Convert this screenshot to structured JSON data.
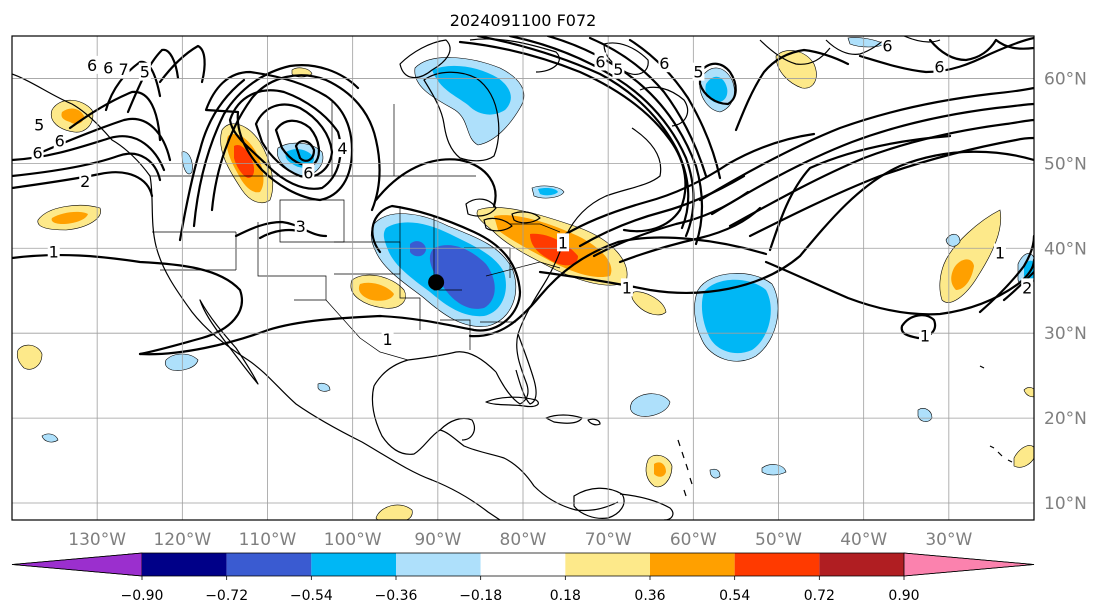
{
  "title": "2024091100 F072",
  "map": {
    "lon_range": [
      -140,
      -20
    ],
    "lat_range": [
      8,
      65
    ],
    "lon_ticks": [
      {
        "lon": -130,
        "label": "130°W"
      },
      {
        "lon": -120,
        "label": "120°W"
      },
      {
        "lon": -110,
        "label": "110°W"
      },
      {
        "lon": -100,
        "label": "100°W"
      },
      {
        "lon": -90,
        "label": "90°W"
      },
      {
        "lon": -80,
        "label": "80°W"
      },
      {
        "lon": -70,
        "label": "70°W"
      },
      {
        "lon": -60,
        "label": "60°W"
      },
      {
        "lon": -50,
        "label": "50°W"
      },
      {
        "lon": -40,
        "label": "40°W"
      },
      {
        "lon": -30,
        "label": "30°W"
      }
    ],
    "lat_ticks": [
      {
        "lat": 10,
        "label": "10°N"
      },
      {
        "lat": 20,
        "label": "20°N"
      },
      {
        "lat": 30,
        "label": "30°N"
      },
      {
        "lat": 40,
        "label": "40°N"
      },
      {
        "lat": 50,
        "label": "50°N"
      },
      {
        "lat": 60,
        "label": "60°N"
      }
    ],
    "grid": true,
    "marker": {
      "lon": -90.2,
      "lat": 36.0
    }
  },
  "colorbar": {
    "colors": [
      "#9b2fce",
      "#000088",
      "#3a5bd1",
      "#00b7f5",
      "#aee0fb",
      "#ffffff",
      "#fde98a",
      "#ffa000",
      "#ff3a00",
      "#b01e22",
      "#fb82ae"
    ],
    "labels": [
      "−0.90",
      "−0.72",
      "−0.54",
      "−0.36",
      "−0.18",
      "0.18",
      "0.36",
      "0.54",
      "0.72",
      "0.90"
    ],
    "extend": "both"
  },
  "contour_labels": [
    {
      "text": "6",
      "lon": -130.6,
      "lat": 61.6
    },
    {
      "text": "6",
      "lon": -128.7,
      "lat": 61.3
    },
    {
      "text": "7",
      "lon": -126.9,
      "lat": 61.1
    },
    {
      "text": "5",
      "lon": -124.4,
      "lat": 60.8
    },
    {
      "text": "5",
      "lon": -136.8,
      "lat": 54.6
    },
    {
      "text": "6",
      "lon": -134.4,
      "lat": 52.7
    },
    {
      "text": "6",
      "lon": -137.0,
      "lat": 51.3
    },
    {
      "text": "2",
      "lon": -131.4,
      "lat": 47.9
    },
    {
      "text": "1",
      "lon": -135.1,
      "lat": 39.6
    },
    {
      "text": "4",
      "lon": -101.2,
      "lat": 51.8
    },
    {
      "text": "6",
      "lon": -105.2,
      "lat": 48.9
    },
    {
      "text": "3",
      "lon": -106.1,
      "lat": 42.6
    },
    {
      "text": "1",
      "lon": -95.9,
      "lat": 29.3
    },
    {
      "text": "1",
      "lon": -75.3,
      "lat": 40.7
    },
    {
      "text": "1",
      "lon": -67.8,
      "lat": 35.4
    },
    {
      "text": "6",
      "lon": -70.9,
      "lat": 62.0
    },
    {
      "text": "5",
      "lon": -68.8,
      "lat": 61.1
    },
    {
      "text": "6",
      "lon": -63.4,
      "lat": 61.8
    },
    {
      "text": "5",
      "lon": -59.4,
      "lat": 60.8
    },
    {
      "text": "6",
      "lon": -37.2,
      "lat": 63.9
    },
    {
      "text": "6",
      "lon": -31.1,
      "lat": 61.4
    },
    {
      "text": "1",
      "lon": -24.0,
      "lat": 39.5
    },
    {
      "text": "2",
      "lon": -20.8,
      "lat": 35.4
    },
    {
      "text": "1",
      "lon": -32.8,
      "lat": 29.7
    }
  ]
}
